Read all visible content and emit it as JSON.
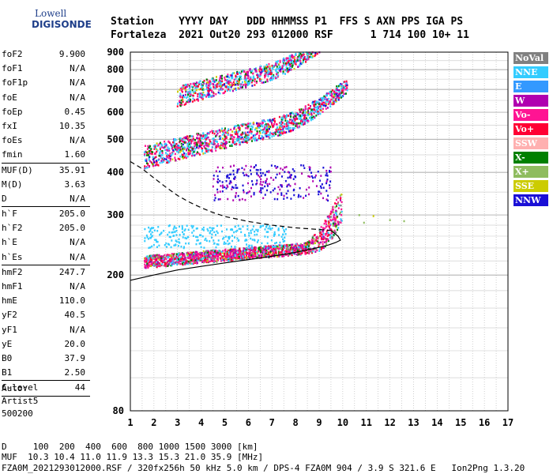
{
  "logo": {
    "top": "Lowell",
    "bottom": "DIGISONDE"
  },
  "header": {
    "line1": "Station    YYYY DAY   DDD HHMMSS P1  FFS S AXN PPS IGA PS",
    "line2": "Fortaleza  2021 Out20 293 012000 RSF      1 714 100 10+ 11"
  },
  "params": [
    {
      "name": "foF2",
      "value": "9.900"
    },
    {
      "name": "foF1",
      "value": "N/A"
    },
    {
      "name": "foF1p",
      "value": "N/A"
    },
    {
      "name": "foE",
      "value": "N/A"
    },
    {
      "name": "foEp",
      "value": "0.45"
    },
    {
      "name": "fxI",
      "value": "10.35"
    },
    {
      "name": "foEs",
      "value": "N/A"
    },
    {
      "name": "fmin",
      "value": "1.60"
    },
    {
      "name": "MUF(D)",
      "value": "35.91"
    },
    {
      "name": "M(D)",
      "value": "3.63"
    },
    {
      "name": "D",
      "value": "N/A"
    },
    {
      "name": "h`F",
      "value": "205.0"
    },
    {
      "name": "h`F2",
      "value": "205.0"
    },
    {
      "name": "h`E",
      "value": "N/A"
    },
    {
      "name": "h`Es",
      "value": "N/A"
    },
    {
      "name": "hmF2",
      "value": "247.7"
    },
    {
      "name": "hmF1",
      "value": "N/A"
    },
    {
      "name": "hmE",
      "value": "110.0"
    },
    {
      "name": "yF2",
      "value": "40.5"
    },
    {
      "name": "yF1",
      "value": "N/A"
    },
    {
      "name": "yE",
      "value": "20.0"
    },
    {
      "name": "B0",
      "value": "37.9"
    },
    {
      "name": "B1",
      "value": "2.50"
    },
    {
      "name": "C-level",
      "value": "44"
    }
  ],
  "auto": {
    "line1": "Auto:",
    "line2": "Artist5",
    "line3": "500200"
  },
  "legend": [
    {
      "label": "NoVal",
      "color": "#808080"
    },
    {
      "label": "NNE",
      "color": "#33ccff"
    },
    {
      "label": "E",
      "color": "#3399ff"
    },
    {
      "label": "W",
      "color": "#b000b0"
    },
    {
      "label": "Vo-",
      "color": "#ff1493"
    },
    {
      "label": "Vo+",
      "color": "#ff0033"
    },
    {
      "label": "SSW",
      "color": "#ffb0b0"
    },
    {
      "label": "X-",
      "color": "#008000"
    },
    {
      "label": "X+",
      "color": "#8fbc5f"
    },
    {
      "label": "SSE",
      "color": "#cccc00"
    },
    {
      "label": "NNW",
      "color": "#1a0fd6"
    }
  ],
  "footer": {
    "line1": "D     100  200  400  600  800 1000 1500 3000 [km]",
    "line2": "MUF  10.3 10.4 11.0 11.9 13.3 15.3 21.0 35.9 [MHz]",
    "line3": "FZA0M_2021293012000.RSF / 320fx256h 50 kHz 5.0 km / DPS-4 FZA0M 904 / 3.9 S 321.6 E   Ion2Png 1.3.20"
  },
  "chart_data": {
    "type": "scatter",
    "title": "",
    "xlabel": "",
    "ylabel": "",
    "xlim": [
      1,
      17
    ],
    "ylim": [
      80,
      900
    ],
    "y_scale": "log",
    "x_ticks": [
      1,
      2,
      3,
      4,
      5,
      6,
      7,
      8,
      9,
      10,
      11,
      12,
      13,
      14,
      15,
      16,
      17
    ],
    "y_ticks": [
      80,
      200,
      300,
      400,
      500,
      600,
      700,
      800,
      900
    ],
    "grid": true,
    "traces": [
      {
        "name": "",
        "style": "solid",
        "x": [
          1.0,
          2.0,
          3.0,
          4.0,
          5.0,
          6.0,
          7.0,
          8.0,
          8.5,
          9.0,
          9.4,
          9.7,
          9.9,
          9.8,
          9.5
        ],
        "y": [
          193,
          200,
          207,
          212,
          217,
          222,
          227,
          233,
          237,
          241,
          245,
          249,
          253,
          260,
          270
        ]
      },
      {
        "name": "",
        "style": "dashed",
        "x": [
          1.0,
          1.5,
          2.0,
          2.5,
          3.0,
          3.5,
          4.0,
          4.5,
          5.0,
          6.0,
          7.0,
          8.0,
          9.0,
          9.5
        ],
        "y": [
          430,
          410,
          385,
          362,
          342,
          327,
          315,
          305,
          297,
          287,
          280,
          275,
          272,
          270
        ]
      }
    ]
  }
}
